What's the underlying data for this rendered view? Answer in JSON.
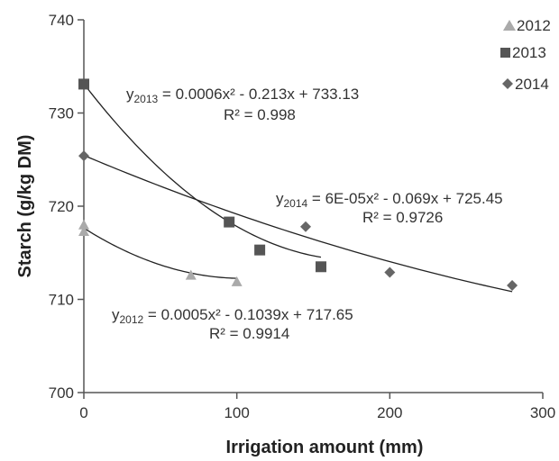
{
  "chart_data": {
    "type": "scatter",
    "xlabel": "Irrigation amount (mm)",
    "ylabel": "Starch (g/kg DM)",
    "xlim": [
      0,
      300
    ],
    "ylim": [
      700,
      740
    ],
    "xticks": [
      "0",
      "100",
      "200",
      "300"
    ],
    "yticks": [
      "700",
      "710",
      "720",
      "730",
      "740"
    ],
    "grid": false,
    "legend_position": "top-right",
    "series": [
      {
        "name": "2012",
        "marker": "triangle",
        "color": "#aaaaaa",
        "points": [
          [
            0,
            718.0
          ],
          [
            0,
            717.3
          ],
          [
            70,
            712.6
          ],
          [
            100,
            711.9
          ]
        ],
        "trend": {
          "a": 0.0005,
          "b": -0.1039,
          "c": 717.65,
          "xmax": 100
        },
        "equation_prefix": "y",
        "equation_sub": "2012",
        "equation_body": " = 0.0005x² - 0.1039x + 717.65",
        "r2": "R² = 0.9914"
      },
      {
        "name": "2013",
        "marker": "square",
        "color": "#555555",
        "points": [
          [
            0,
            733.1
          ],
          [
            95,
            718.3
          ],
          [
            115,
            715.3
          ],
          [
            155,
            713.5
          ]
        ],
        "trend": {
          "a": 0.0006,
          "b": -0.213,
          "c": 733.13,
          "xmax": 155
        },
        "equation_prefix": "y",
        "equation_sub": "2013",
        "equation_body": " = 0.0006x² - 0.213x + 733.13",
        "r2": "R² = 0.998"
      },
      {
        "name": "2014",
        "marker": "diamond",
        "color": "#666666",
        "points": [
          [
            0,
            725.4
          ],
          [
            145,
            717.8
          ],
          [
            200,
            712.9
          ],
          [
            280,
            711.5
          ]
        ],
        "trend": {
          "a": 6e-05,
          "b": -0.069,
          "c": 725.45,
          "xmax": 280
        },
        "equation_prefix": "y",
        "equation_sub": "2014",
        "equation_body": " = 6E-05x² - 0.069x + 725.45",
        "r2": "R² = 0.9726"
      }
    ]
  }
}
